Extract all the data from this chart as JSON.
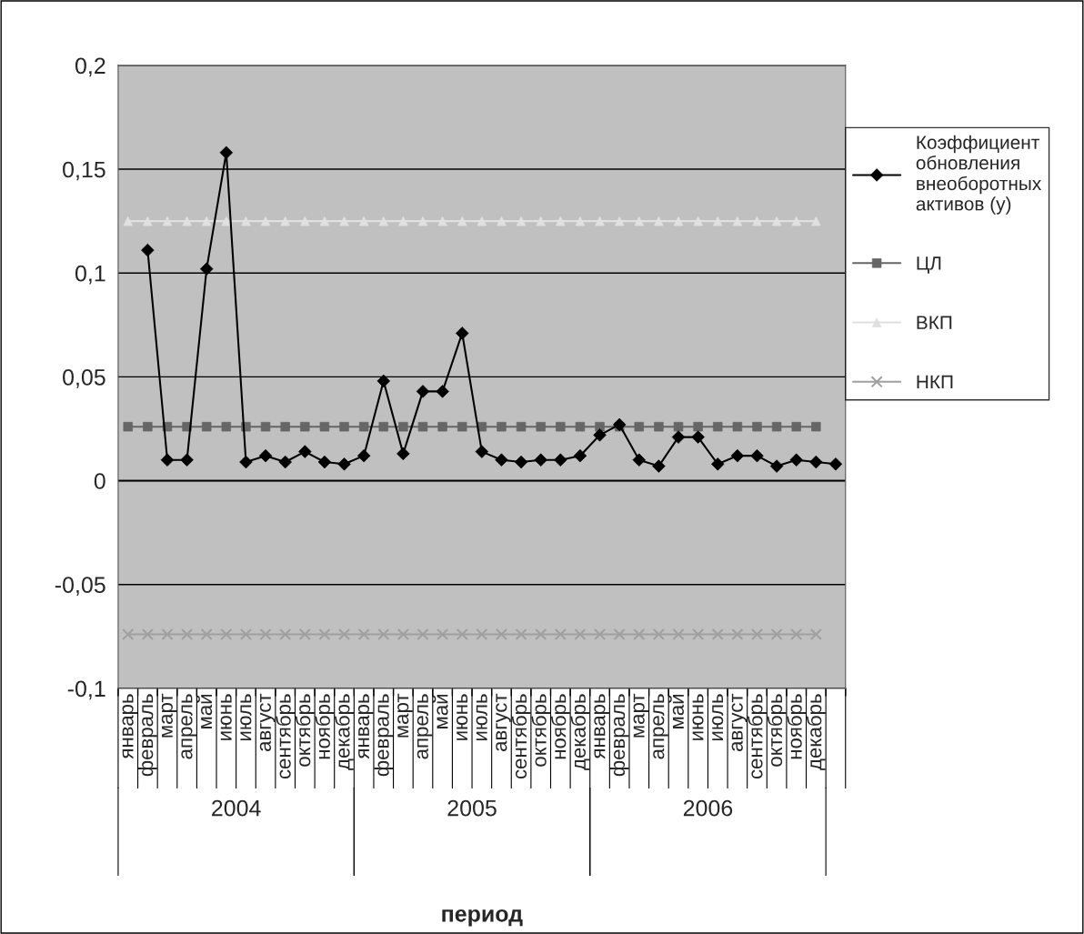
{
  "chart_data": {
    "type": "line",
    "categories": [
      "январь",
      "февраль",
      "март",
      "апрель",
      "май",
      "июнь",
      "июль",
      "август",
      "сентябрь",
      "октябрь",
      "ноябрь",
      "декабрь",
      "январь",
      "февраль",
      "март",
      "апрель",
      "май",
      "июнь",
      "июль",
      "август",
      "сентябрь",
      "октябрь",
      "ноябрь",
      "декабрь",
      "январь",
      "февраль",
      "март",
      "апрель",
      "май",
      "июнь",
      "июль",
      "август",
      "сентябрь",
      "октябрь",
      "ноябрь",
      "декабрь",
      null
    ],
    "annotations": [
      "2004",
      "2005",
      "2006",
      "период"
    ],
    "ylim": [
      -0.1,
      0.2
    ],
    "yticks": [
      {
        "value": -0.1,
        "label": "-0,1"
      },
      {
        "value": -0.05,
        "label": "-0,05"
      },
      {
        "value": 0,
        "label": "0"
      },
      {
        "value": 0.05,
        "label": "0,05"
      },
      {
        "value": 0.1,
        "label": "0,1"
      },
      {
        "value": 0.15,
        "label": "0,15"
      },
      {
        "value": 0.2,
        "label": "0,2"
      }
    ],
    "grid": "y",
    "legend": "right",
    "series": [
      {
        "name": "Коэффициент\nобновления\nвнеоборотных\nактивов (у)",
        "color": "#000000",
        "marker": "diamond",
        "values": [
          null,
          0.111,
          0.01,
          0.01,
          0.102,
          0.158,
          0.009,
          0.012,
          0.009,
          0.014,
          0.009,
          0.008,
          0.012,
          0.048,
          0.013,
          0.043,
          0.043,
          0.071,
          0.014,
          0.01,
          0.009,
          0.01,
          0.01,
          0.012,
          0.022,
          0.027,
          0.01,
          0.007,
          0.021,
          0.021,
          0.008,
          0.012,
          0.012,
          0.007,
          0.01,
          0.009,
          0.008
        ]
      },
      {
        "name": "ЦЛ",
        "color": "#666666",
        "marker": "square",
        "values": [
          0.026,
          0.026,
          0.026,
          0.026,
          0.026,
          0.026,
          0.026,
          0.026,
          0.026,
          0.026,
          0.026,
          0.026,
          0.026,
          0.026,
          0.026,
          0.026,
          0.026,
          0.026,
          0.026,
          0.026,
          0.026,
          0.026,
          0.026,
          0.026,
          0.026,
          0.026,
          0.026,
          0.026,
          0.026,
          0.026,
          0.026,
          0.026,
          0.026,
          0.026,
          0.026,
          0.026,
          null
        ]
      },
      {
        "name": "ВКП",
        "color": "#e0e0e0",
        "marker": "triangle",
        "values": [
          0.125,
          0.125,
          0.125,
          0.125,
          0.125,
          0.125,
          0.125,
          0.125,
          0.125,
          0.125,
          0.125,
          0.125,
          0.125,
          0.125,
          0.125,
          0.125,
          0.125,
          0.125,
          0.125,
          0.125,
          0.125,
          0.125,
          0.125,
          0.125,
          0.125,
          0.125,
          0.125,
          0.125,
          0.125,
          0.125,
          0.125,
          0.125,
          0.125,
          0.125,
          0.125,
          0.125,
          null
        ]
      },
      {
        "name": "НКП",
        "color": "#a0a0a0",
        "marker": "cross",
        "values": [
          -0.074,
          -0.074,
          -0.074,
          -0.074,
          -0.074,
          -0.074,
          -0.074,
          -0.074,
          -0.074,
          -0.074,
          -0.074,
          -0.074,
          -0.074,
          -0.074,
          -0.074,
          -0.074,
          -0.074,
          -0.074,
          -0.074,
          -0.074,
          -0.074,
          -0.074,
          -0.074,
          -0.074,
          -0.074,
          -0.074,
          -0.074,
          -0.074,
          -0.074,
          -0.074,
          -0.074,
          -0.074,
          -0.074,
          -0.074,
          -0.074,
          -0.074,
          null
        ]
      }
    ]
  }
}
